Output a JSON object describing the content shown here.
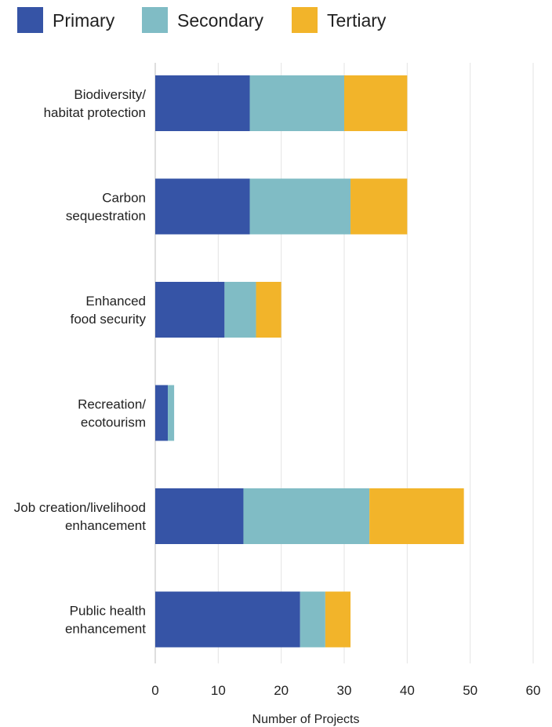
{
  "chart_data": {
    "type": "bar",
    "orientation": "horizontal",
    "stacked": true,
    "categories": [
      [
        "Biodiversity/",
        "habitat protection"
      ],
      [
        "Carbon",
        "sequestration"
      ],
      [
        "Enhanced",
        "food security"
      ],
      [
        "Recreation/",
        "ecotourism"
      ],
      [
        "Job creation/livelihood",
        "enhancement"
      ],
      [
        "Public health",
        "enhancement"
      ]
    ],
    "series": [
      {
        "name": "Primary",
        "color": "#3654a6",
        "values": [
          15,
          15,
          11,
          2,
          14,
          23
        ]
      },
      {
        "name": "Secondary",
        "color": "#80bcc5",
        "values": [
          15,
          16,
          5,
          1,
          20,
          4
        ]
      },
      {
        "name": "Tertiary",
        "color": "#f2b42a",
        "values": [
          10,
          9,
          4,
          0,
          15,
          4
        ]
      }
    ],
    "xlabel": "Number of Projects",
    "xlim": [
      0,
      60
    ],
    "xticks": [
      0,
      10,
      20,
      30,
      40,
      50,
      60
    ],
    "grid": "vertical",
    "legend": "top-left"
  }
}
